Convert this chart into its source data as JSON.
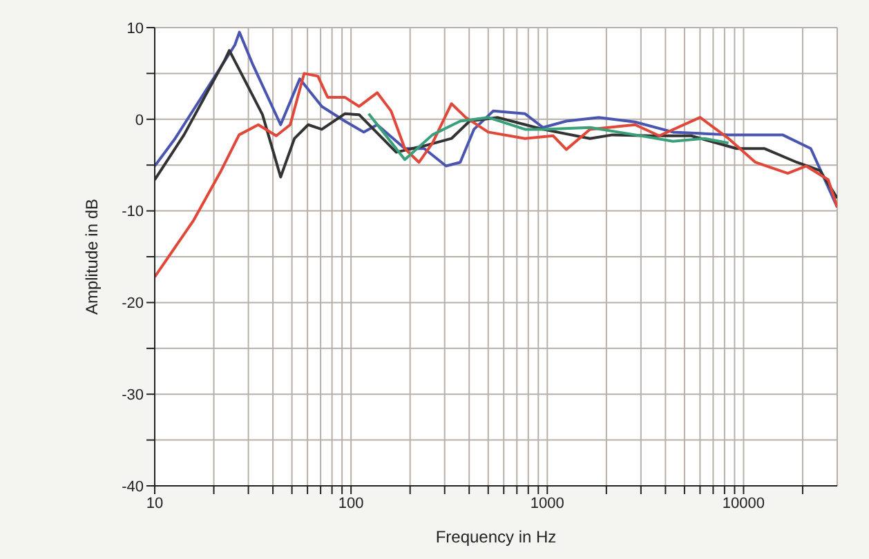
{
  "chart_data": {
    "type": "line",
    "xlabel": "Frequency in Hz",
    "ylabel": "Amplitude in dB",
    "log": "x",
    "grid": true,
    "xlim": [
      10,
      30000
    ],
    "ylim": [
      -40,
      10
    ],
    "xticks": [
      10,
      {
        "value": 20,
        "label": null
      },
      {
        "value": 30,
        "label": null
      },
      {
        "value": 40,
        "label": null
      },
      {
        "value": 50,
        "label": null
      },
      {
        "value": 60,
        "label": null
      },
      {
        "value": 70,
        "label": null
      },
      {
        "value": 80,
        "label": null
      },
      {
        "value": 90,
        "label": null
      },
      100,
      {
        "value": 200,
        "label": null
      },
      {
        "value": 300,
        "label": null
      },
      {
        "value": 400,
        "label": null
      },
      {
        "value": 500,
        "label": null
      },
      {
        "value": 600,
        "label": null
      },
      {
        "value": 700,
        "label": null
      },
      {
        "value": 800,
        "label": null
      },
      {
        "value": 900,
        "label": null
      },
      1000,
      {
        "value": 2000,
        "label": null
      },
      {
        "value": 3000,
        "label": null
      },
      {
        "value": 4000,
        "label": null
      },
      {
        "value": 5000,
        "label": null
      },
      {
        "value": 6000,
        "label": null
      },
      {
        "value": 7000,
        "label": null
      },
      {
        "value": 8000,
        "label": null
      },
      {
        "value": 9000,
        "label": null
      },
      10000,
      {
        "value": 20000,
        "label": null
      }
    ],
    "yticks": [
      -40,
      {
        "value": -35,
        "label": null
      },
      -30,
      {
        "value": -25,
        "label": null
      },
      -20,
      {
        "value": -15,
        "label": null
      },
      -10,
      {
        "value": -5,
        "label": null
      },
      0,
      {
        "value": 5,
        "label": null
      },
      10
    ],
    "series": [
      {
        "color": "#4a55b0",
        "x": [
          10,
          12.7,
          25.6,
          27,
          31.7,
          43.8,
          54.8,
          71,
          93,
          116,
          136,
          188,
          236,
          305,
          360,
          423,
          530,
          770,
          951,
          1250,
          1830,
          2800,
          4370,
          8380,
          15800,
          22000,
          30000
        ],
        "values": [
          -5.1,
          -2.1,
          8.1,
          9.5,
          5.9,
          -0.6,
          4.4,
          1.4,
          -0.2,
          -1.4,
          -0.6,
          -3.2,
          -3.2,
          -5.1,
          -4.7,
          -1.1,
          0.9,
          0.6,
          -0.9,
          -0.2,
          0.2,
          -0.3,
          -1.4,
          -1.7,
          -1.7,
          -3.2,
          -9.6
        ]
      },
      {
        "color": "#333333",
        "x": [
          10,
          14.1,
          22.8,
          24,
          30,
          35.4,
          43.8,
          51.5,
          60.5,
          71,
          93,
          110,
          170,
          236,
          325,
          402,
          557,
          951,
          1650,
          2150,
          3350,
          5400,
          9200,
          12800,
          18700,
          24500,
          30000
        ],
        "values": [
          -6.6,
          -1.7,
          6.5,
          7.5,
          3.5,
          0.5,
          -6.3,
          -2.1,
          -0.6,
          -1.1,
          0.6,
          0.5,
          -3.6,
          -2.9,
          -2.1,
          -0.2,
          0.2,
          -1.1,
          -2.1,
          -1.7,
          -1.8,
          -1.8,
          -3.2,
          -3.2,
          -4.7,
          -5.6,
          -8.6
        ]
      },
      {
        "color": "#e0483a",
        "x": [
          10,
          15.7,
          21.8,
          26.9,
          33.7,
          41.6,
          49,
          57.7,
          67.8,
          76,
          93,
          110,
          136,
          160,
          188,
          222,
          260,
          325,
          384,
          500,
          770,
          1070,
          1250,
          1650,
          2800,
          3720,
          6000,
          8380,
          11500,
          16800,
          20800,
          27000,
          30000
        ],
        "values": [
          -17.2,
          -11.1,
          -5.6,
          -1.7,
          -0.6,
          -1.8,
          -0.6,
          5,
          4.7,
          2.4,
          2.4,
          1.4,
          2.9,
          0.9,
          -3.2,
          -4.7,
          -2.6,
          1.7,
          0.2,
          -1.4,
          -2.1,
          -1.8,
          -3.3,
          -1.1,
          -0.6,
          -1.8,
          0.2,
          -2.1,
          -4.7,
          -5.9,
          -5.1,
          -6.6,
          -9.6
        ]
      },
      {
        "color": "#3aa079",
        "x": [
          123,
          188,
          260,
          360,
          500,
          770,
          951,
          1650,
          2800,
          4370,
          6330,
          8380
        ],
        "values": [
          0.6,
          -4.4,
          -1.7,
          -0.2,
          0.2,
          -1.1,
          -1.1,
          -0.9,
          -1.7,
          -2.4,
          -2.1,
          -2.6
        ]
      }
    ]
  }
}
